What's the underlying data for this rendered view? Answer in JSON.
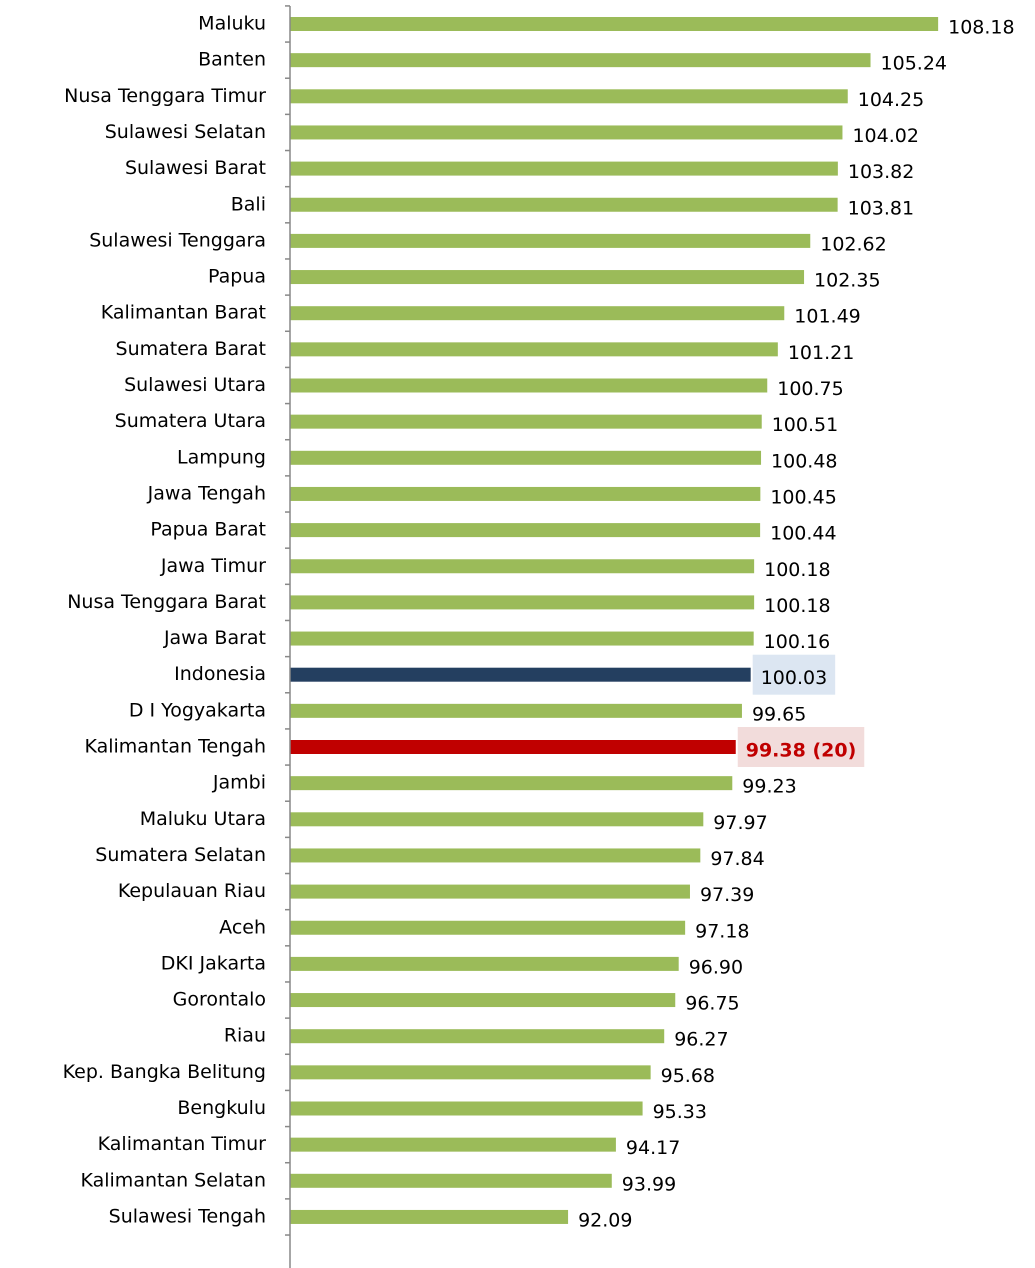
{
  "chart_data": {
    "type": "barh",
    "categories": [
      "Maluku",
      "Banten",
      "Nusa Tenggara Timur",
      "Sulawesi Selatan",
      "Sulawesi Barat",
      "Bali",
      "Sulawesi Tenggara",
      "Papua",
      "Kalimantan Barat",
      "Sumatera Barat",
      "Sulawesi Utara",
      "Sumatera Utara",
      "Lampung",
      "Jawa Tengah",
      "Papua Barat",
      "Jawa Timur",
      "Nusa Tenggara Barat",
      "Jawa Barat",
      "Indonesia",
      "D I Yogyakarta",
      "Kalimantan Tengah",
      "Jambi",
      "Maluku Utara",
      "Sumatera Selatan",
      "Kepulauan Riau",
      "Aceh",
      "DKI Jakarta",
      "Gorontalo",
      "Riau",
      "Kep. Bangka Belitung",
      "Bengkulu",
      "Kalimantan Timur",
      "Kalimantan Selatan",
      "Sulawesi Tengah"
    ],
    "values": [
      108.18,
      105.24,
      104.25,
      104.02,
      103.82,
      103.81,
      102.62,
      102.35,
      101.49,
      101.21,
      100.75,
      100.51,
      100.48,
      100.45,
      100.44,
      100.18,
      100.18,
      100.16,
      100.03,
      99.65,
      99.38,
      99.23,
      97.97,
      97.84,
      97.39,
      97.18,
      96.9,
      96.75,
      96.27,
      95.68,
      95.33,
      94.17,
      93.99,
      92.09
    ],
    "value_labels": [
      "108.18",
      "105.24",
      "104.25",
      "104.02",
      "103.82",
      "103.81",
      "102.62",
      "102.35",
      "101.49",
      "101.21",
      "100.75",
      "100.51",
      "100.48",
      "100.45",
      "100.44",
      "100.18",
      "100.18",
      "100.16",
      "100.03",
      "99.65",
      "99.38 (20)",
      "99.23",
      "97.97",
      "97.84",
      "97.39",
      "97.18",
      "96.90",
      "96.75",
      "96.27",
      "95.68",
      "95.33",
      "94.17",
      "93.99",
      "92.09"
    ],
    "colors": [
      "#9bbb59",
      "#9bbb59",
      "#9bbb59",
      "#9bbb59",
      "#9bbb59",
      "#9bbb59",
      "#9bbb59",
      "#9bbb59",
      "#9bbb59",
      "#9bbb59",
      "#9bbb59",
      "#9bbb59",
      "#9bbb59",
      "#9bbb59",
      "#9bbb59",
      "#9bbb59",
      "#9bbb59",
      "#9bbb59",
      "#243f60",
      "#9bbb59",
      "#c00000",
      "#9bbb59",
      "#9bbb59",
      "#9bbb59",
      "#9bbb59",
      "#9bbb59",
      "#9bbb59",
      "#9bbb59",
      "#9bbb59",
      "#9bbb59",
      "#9bbb59",
      "#9bbb59",
      "#9bbb59",
      "#9bbb59"
    ],
    "xlim": [
      80,
      110
    ]
  }
}
